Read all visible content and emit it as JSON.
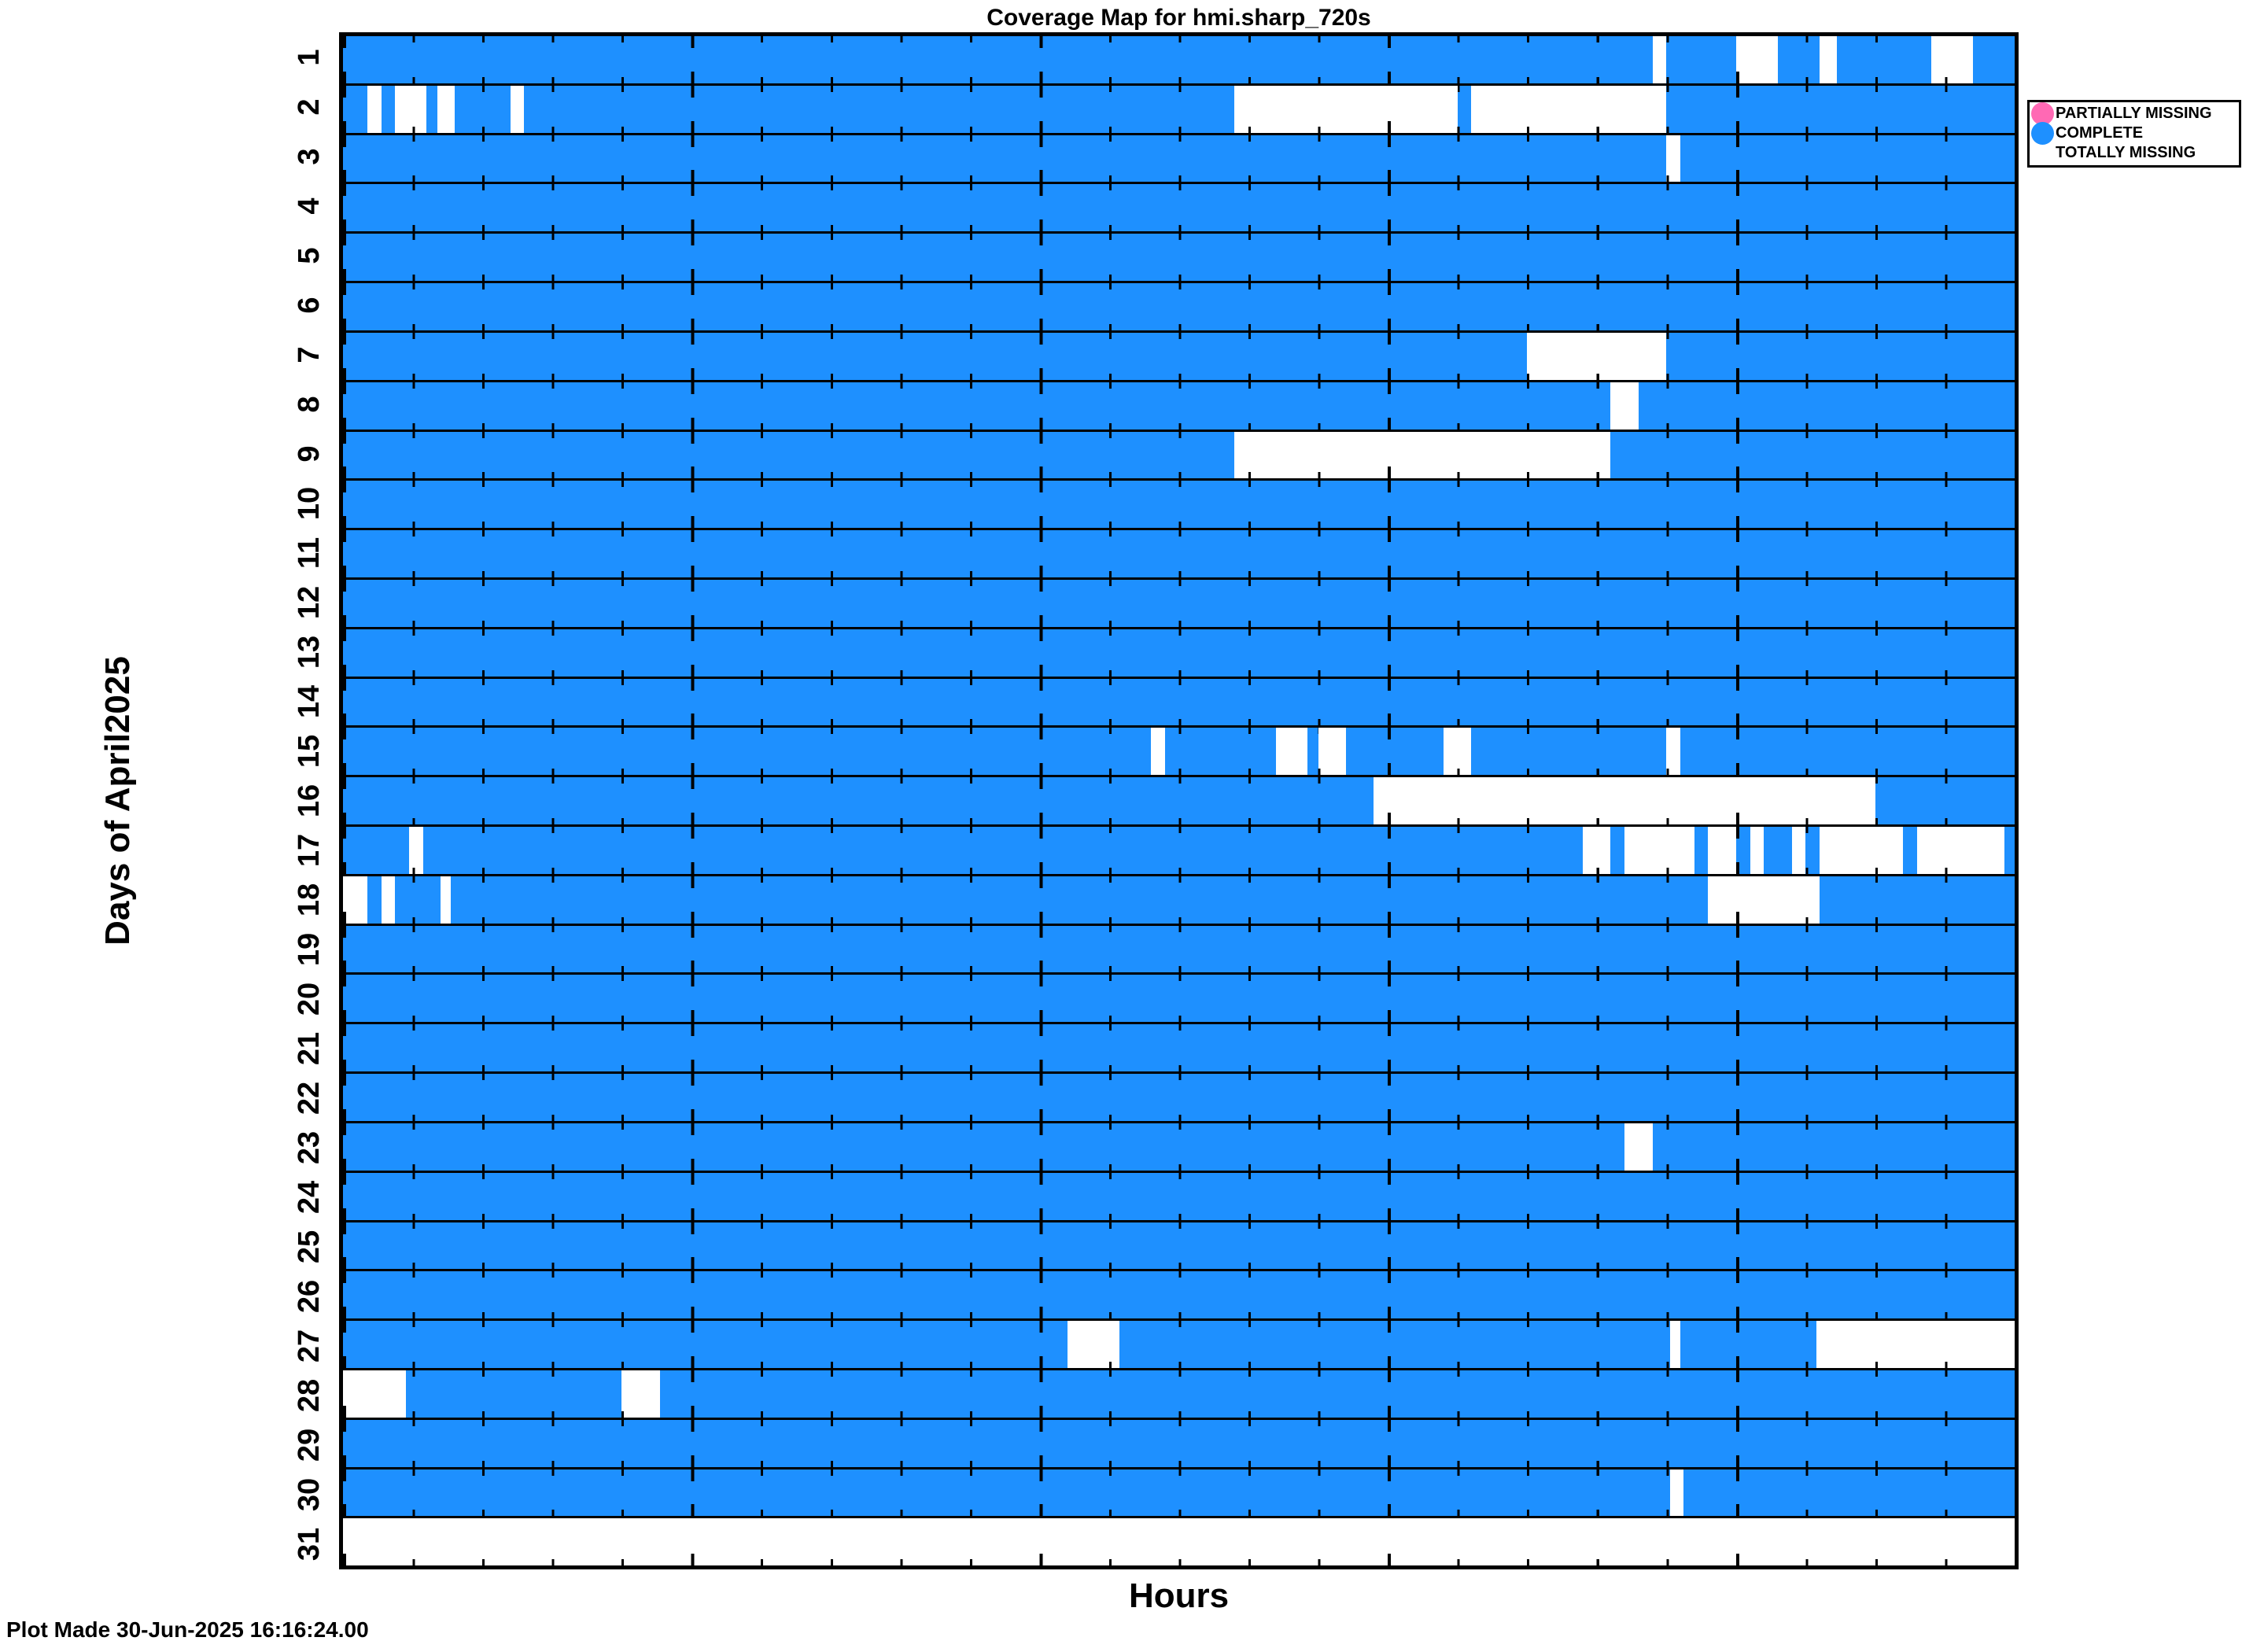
{
  "title": "Coverage Map for hmi.sharp_720s",
  "footer": "Plot Made 30-Jun-2025 16:16:24.00",
  "colors": {
    "complete": "#1E90FF",
    "partially_missing": "#FF69B4",
    "totally_missing": "#FFFFFF",
    "axis": "#000000"
  },
  "chart_data": {
    "type": "heatmap",
    "title": "Coverage Map for hmi.sharp_720s",
    "xlabel": "Hours",
    "ylabel": "Days of April2025",
    "x_range": [
      0,
      24
    ],
    "x_minor_tick_step_hours": 1,
    "x_major_tick_step_hours": 5,
    "grid": "row-separators",
    "legend_position": "top-right-outside",
    "legend": [
      {
        "label": "PARTIALLY MISSING",
        "color": "#FF69B4"
      },
      {
        "label": "COMPLETE",
        "color": "#1E90FF"
      },
      {
        "label": "TOTALLY MISSING",
        "color": null
      }
    ],
    "value_semantics": "blue = COMPLETE coverage, white = TOTALLY MISSING, pink = PARTIALLY MISSING (none present)",
    "rows": [
      {
        "day": 1,
        "missing_hours": [
          [
            18.8,
            19.0
          ],
          [
            20.0,
            20.6
          ],
          [
            21.2,
            21.45
          ],
          [
            22.8,
            23.4
          ]
        ]
      },
      {
        "day": 2,
        "missing_hours": [
          [
            0.35,
            0.55
          ],
          [
            0.75,
            1.2
          ],
          [
            1.35,
            1.6
          ],
          [
            2.4,
            2.6
          ],
          [
            12.8,
            16.0
          ],
          [
            16.2,
            19.0
          ]
        ]
      },
      {
        "day": 3,
        "missing_hours": [
          [
            19.0,
            19.2
          ]
        ]
      },
      {
        "day": 4,
        "missing_hours": []
      },
      {
        "day": 5,
        "missing_hours": []
      },
      {
        "day": 6,
        "missing_hours": []
      },
      {
        "day": 7,
        "missing_hours": [
          [
            17.0,
            19.0
          ]
        ]
      },
      {
        "day": 8,
        "missing_hours": [
          [
            18.2,
            18.6
          ]
        ]
      },
      {
        "day": 9,
        "missing_hours": [
          [
            12.8,
            18.2
          ]
        ]
      },
      {
        "day": 10,
        "missing_hours": []
      },
      {
        "day": 11,
        "missing_hours": []
      },
      {
        "day": 12,
        "missing_hours": []
      },
      {
        "day": 13,
        "missing_hours": []
      },
      {
        "day": 14,
        "missing_hours": []
      },
      {
        "day": 15,
        "missing_hours": [
          [
            11.6,
            11.8
          ],
          [
            13.4,
            13.85
          ],
          [
            14.0,
            14.4
          ],
          [
            15.8,
            16.2
          ],
          [
            19.0,
            19.2
          ]
        ]
      },
      {
        "day": 16,
        "missing_hours": [
          [
            14.8,
            22.0
          ]
        ]
      },
      {
        "day": 17,
        "missing_hours": [
          [
            0.95,
            1.15
          ],
          [
            17.8,
            18.2
          ],
          [
            18.4,
            19.4
          ],
          [
            19.6,
            20.0
          ],
          [
            20.2,
            20.4
          ],
          [
            20.8,
            21.0
          ],
          [
            21.2,
            22.4
          ],
          [
            22.6,
            23.85
          ]
        ]
      },
      {
        "day": 18,
        "missing_hours": [
          [
            0.0,
            0.35
          ],
          [
            0.55,
            0.75
          ],
          [
            1.4,
            1.55
          ],
          [
            19.6,
            21.2
          ]
        ]
      },
      {
        "day": 19,
        "missing_hours": []
      },
      {
        "day": 20,
        "missing_hours": []
      },
      {
        "day": 21,
        "missing_hours": []
      },
      {
        "day": 22,
        "missing_hours": []
      },
      {
        "day": 23,
        "missing_hours": [
          [
            18.4,
            18.8
          ]
        ]
      },
      {
        "day": 24,
        "missing_hours": []
      },
      {
        "day": 25,
        "missing_hours": []
      },
      {
        "day": 26,
        "missing_hours": []
      },
      {
        "day": 27,
        "missing_hours": [
          [
            10.4,
            11.15
          ],
          [
            19.05,
            19.2
          ],
          [
            21.15,
            24.0
          ]
        ]
      },
      {
        "day": 28,
        "missing_hours": [
          [
            0.0,
            0.9
          ],
          [
            4.0,
            4.55
          ]
        ]
      },
      {
        "day": 29,
        "missing_hours": []
      },
      {
        "day": 30,
        "missing_hours": [
          [
            19.05,
            19.25
          ]
        ]
      },
      {
        "day": 31,
        "missing_hours": [
          [
            0.0,
            24.0
          ]
        ]
      }
    ]
  }
}
